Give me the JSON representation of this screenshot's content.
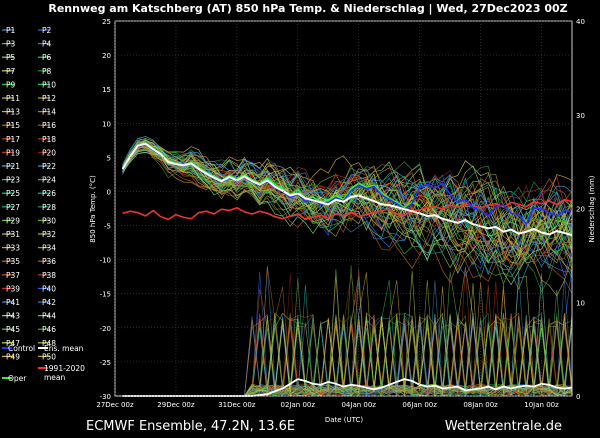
{
  "header": {
    "title": "Rennweg am Katschberg  (AT)  850 hPa Temp. & Niederschlag | Wed, 27Dec2023 00Z"
  },
  "footer": {
    "left": "ECMWF Ensemble, 47.2N, 13.6E",
    "right": "Wetterzentrale.de"
  },
  "legend": {
    "members": [
      {
        "label": "P1",
        "color": "#4a86e8"
      },
      {
        "label": "P2",
        "color": "#3366ff"
      },
      {
        "label": "P3",
        "color": "#6fbf3a"
      },
      {
        "label": "P4",
        "color": "#3a78d8"
      },
      {
        "label": "P5",
        "color": "#8ee07a"
      },
      {
        "label": "P6",
        "color": "#22cc55"
      },
      {
        "label": "P7",
        "color": "#c9d94a"
      },
      {
        "label": "P8",
        "color": "#1f9b2f"
      },
      {
        "label": "P9",
        "color": "#1bbf3f"
      },
      {
        "label": "P10",
        "color": "#26d15a"
      },
      {
        "label": "P11",
        "color": "#d9b23a"
      },
      {
        "label": "P12",
        "color": "#c8a030"
      },
      {
        "label": "P13",
        "color": "#e0a040"
      },
      {
        "label": "P14",
        "color": "#b07a30"
      },
      {
        "label": "P15",
        "color": "#c06a20"
      },
      {
        "label": "P16",
        "color": "#a85f25"
      },
      {
        "label": "P17",
        "color": "#cc4422"
      },
      {
        "label": "P18",
        "color": "#b03a22"
      },
      {
        "label": "P19",
        "color": "#bb3311"
      },
      {
        "label": "P20",
        "color": "#882211"
      },
      {
        "label": "P21",
        "color": "#4aa8e8"
      },
      {
        "label": "P22",
        "color": "#3a98d8"
      },
      {
        "label": "P23",
        "color": "#3ac0c8"
      },
      {
        "label": "P24",
        "color": "#30a8b0"
      },
      {
        "label": "P25",
        "color": "#2ab7a0"
      },
      {
        "label": "P26",
        "color": "#24a890"
      },
      {
        "label": "P27",
        "color": "#22b070"
      },
      {
        "label": "P28",
        "color": "#1f9a60"
      },
      {
        "label": "P29",
        "color": "#6fbf3a"
      },
      {
        "label": "P30",
        "color": "#5aaa30"
      },
      {
        "label": "P31",
        "color": "#c8c030"
      },
      {
        "label": "P32",
        "color": "#b8b02a"
      },
      {
        "label": "P33",
        "color": "#d9a030"
      },
      {
        "label": "P34",
        "color": "#c08a28"
      },
      {
        "label": "P35",
        "color": "#c06a30"
      },
      {
        "label": "P36",
        "color": "#b05a25"
      },
      {
        "label": "P37",
        "color": "#cc5522"
      },
      {
        "label": "P38",
        "color": "#aa4420"
      },
      {
        "label": "P39",
        "color": "#dd2222"
      },
      {
        "label": "P40",
        "color": "#3366cc"
      },
      {
        "label": "P41",
        "color": "#4a86e8"
      },
      {
        "label": "P42",
        "color": "#3a78d8"
      },
      {
        "label": "P43",
        "color": "#8ee07a"
      },
      {
        "label": "P44",
        "color": "#5ad05a"
      },
      {
        "label": "P45",
        "color": "#7ac050"
      },
      {
        "label": "P46",
        "color": "#30b040"
      },
      {
        "label": "P47",
        "color": "#c9d94a"
      },
      {
        "label": "P48",
        "color": "#a0c040"
      },
      {
        "label": "P49",
        "color": "#d9b23a"
      },
      {
        "label": "P50",
        "color": "#c8a030"
      }
    ],
    "control": {
      "label": "Control",
      "color": "#2233ff"
    },
    "mean": {
      "label": "Ens. mean",
      "color": "#ffffff"
    },
    "oper": {
      "label": "Oper",
      "color": "#33ee33"
    },
    "clim": {
      "label": "1991-2020 mean",
      "line1": "1991-2020",
      "line2": "mean",
      "color": "#ee3333"
    }
  },
  "chart_data": {
    "type": "line",
    "title": "Rennweg am Katschberg  (AT)  850 hPa Temp. & Niederschlag | Wed, 27Dec2023 00Z",
    "xlabel": "Date (UTC)",
    "ylabel": "850 hPa Temp. (°C)",
    "ylabel_right": "Niederschlag (mm)",
    "xlim": [
      0,
      360
    ],
    "ylim": [
      -30,
      25
    ],
    "ylim_right": [
      0,
      40
    ],
    "x_unit": "hours since 27Dec 00z",
    "x_ticks": [
      0,
      48,
      96,
      144,
      192,
      240,
      288,
      336
    ],
    "x_tick_labels": [
      "27Dec 00z",
      "29Dec 00z",
      "31Dec 00z",
      "02Jan 00z",
      "04Jan 00z",
      "06Jan 00z",
      "08Jan 00z",
      "10Jan 00z"
    ],
    "y_ticks": [
      -30,
      -25,
      -20,
      -15,
      -10,
      -5,
      0,
      5,
      10,
      15,
      20,
      25
    ],
    "y_ticks_right": [
      0,
      10,
      20,
      30,
      40
    ],
    "grid": true,
    "series": [
      {
        "name": "1991-2020 mean",
        "color": "#ee3333",
        "axis": "left",
        "x": [
          6,
          12,
          18,
          24,
          30,
          36,
          42,
          48,
          54,
          60,
          66,
          72,
          78,
          84,
          90,
          96,
          102,
          108,
          114,
          120,
          126,
          132,
          138,
          144,
          150,
          156,
          162,
          168,
          174,
          180,
          186,
          192,
          198,
          204,
          210,
          216,
          222,
          228,
          234,
          240,
          246,
          252,
          258,
          264,
          270,
          276,
          282,
          288,
          294,
          300,
          306,
          312,
          318,
          324,
          330,
          336,
          342,
          348,
          354,
          360
        ],
        "y": [
          -3.2,
          -2.9,
          -3.1,
          -3.6,
          -2.8,
          -3.7,
          -4.1,
          -3.4,
          -3.8,
          -4.0,
          -3.1,
          -2.9,
          -3.3,
          -2.6,
          -2.8,
          -2.4,
          -3.0,
          -3.3,
          -2.9,
          -3.2,
          -3.7,
          -4.0,
          -3.6,
          -3.3,
          -4.1,
          -3.8,
          -3.5,
          -3.9,
          -3.3,
          -3.6,
          -3.0,
          -3.7,
          -3.4,
          -3.1,
          -2.8,
          -2.6,
          -3.3,
          -3.5,
          -2.9,
          -2.7,
          -2.4,
          -2.2,
          -2.6,
          -2.0,
          -2.3,
          -1.9,
          -2.1,
          -2.4,
          -2.0,
          -1.8,
          -2.3,
          -1.6,
          -1.9,
          -2.2,
          -1.5,
          -1.8,
          -1.4,
          -1.9,
          -1.2,
          -1.5
        ]
      },
      {
        "name": "Oper",
        "color": "#33ee33",
        "axis": "left",
        "x": [
          6,
          12,
          18,
          24,
          30,
          36,
          42,
          48,
          54,
          60,
          66,
          72,
          78,
          84,
          90,
          96,
          102,
          108,
          114,
          120,
          126,
          132,
          138,
          144,
          150,
          156,
          162,
          168,
          174,
          180,
          186,
          192,
          198,
          204,
          210,
          216,
          222,
          228,
          234,
          240
        ],
        "y": [
          3.4,
          5.2,
          6.8,
          7.1,
          6.3,
          5.6,
          4.4,
          4.1,
          3.9,
          4.2,
          3.5,
          2.8,
          2.2,
          1.6,
          2.3,
          1.8,
          2.4,
          1.7,
          1.2,
          1.9,
          1.0,
          0.4,
          -0.5,
          0.2,
          -1.1,
          -0.8,
          -1.6,
          -1.3,
          -0.6,
          -1.2,
          0.4,
          1.2,
          0.6,
          0.9,
          -0.2,
          -1.0,
          -1.6,
          -2.4,
          -1.6,
          -2.1
        ]
      },
      {
        "name": "Control",
        "color": "#2233ff",
        "axis": "left",
        "x": [
          6,
          12,
          18,
          24,
          30,
          36,
          42,
          48,
          54,
          60,
          66,
          72,
          78,
          84,
          90,
          96,
          102,
          108,
          114,
          120,
          126,
          132,
          138,
          144,
          150,
          156,
          162,
          168,
          174,
          180,
          186,
          192,
          198,
          204,
          210,
          216,
          222,
          228,
          234,
          240,
          246,
          252,
          258,
          264,
          270,
          276,
          282,
          288,
          294,
          300,
          306,
          312,
          318,
          324,
          330,
          336,
          342,
          348,
          354,
          360
        ],
        "y": [
          3.2,
          5.0,
          6.6,
          6.9,
          6.1,
          5.4,
          4.3,
          4.0,
          3.7,
          4.0,
          3.2,
          2.5,
          1.9,
          1.4,
          2.0,
          1.5,
          2.1,
          1.4,
          0.9,
          1.5,
          0.6,
          0.0,
          -0.9,
          -0.4,
          -1.5,
          -1.2,
          -1.9,
          -1.6,
          -0.9,
          -1.4,
          0.1,
          0.9,
          0.4,
          0.7,
          -0.5,
          -1.2,
          -1.8,
          -2.6,
          -1.8,
          0.6,
          1.0,
          0.5,
          1.2,
          -0.4,
          -1.6,
          -1.2,
          -2.4,
          -2.8,
          -3.6,
          -2.2,
          -2.0,
          -3.2,
          -3.4,
          -4.8,
          -2.4,
          -2.6,
          -3.1,
          -3.6,
          -2.8,
          -3.0
        ]
      },
      {
        "name": "Ens. mean",
        "color": "#ffffff",
        "axis": "left",
        "x": [
          6,
          12,
          18,
          24,
          30,
          36,
          42,
          48,
          54,
          60,
          66,
          72,
          78,
          84,
          90,
          96,
          102,
          108,
          114,
          120,
          126,
          132,
          138,
          144,
          150,
          156,
          162,
          168,
          174,
          180,
          186,
          192,
          198,
          204,
          210,
          216,
          222,
          228,
          234,
          240,
          246,
          252,
          258,
          264,
          270,
          276,
          282,
          288,
          294,
          300,
          306,
          312,
          318,
          324,
          330,
          336,
          342,
          348,
          354,
          360
        ],
        "y": [
          3.3,
          5.1,
          6.7,
          7.0,
          6.2,
          5.5,
          4.3,
          4.0,
          3.8,
          4.1,
          3.3,
          2.6,
          2.0,
          1.5,
          2.1,
          1.6,
          2.2,
          1.5,
          1.0,
          1.6,
          0.7,
          0.1,
          -0.6,
          -0.3,
          -1.0,
          -1.3,
          -1.6,
          -1.9,
          -1.2,
          -1.5,
          -0.8,
          -0.6,
          -1.0,
          -1.4,
          -1.9,
          -2.0,
          -2.3,
          -2.6,
          -2.9,
          -3.2,
          -3.6,
          -3.5,
          -4.0,
          -4.3,
          -4.6,
          -4.2,
          -4.8,
          -5.1,
          -5.4,
          -5.2,
          -5.9,
          -5.6,
          -6.2,
          -5.9,
          -5.5,
          -6.0,
          -6.3,
          -5.8,
          -6.1,
          -6.4
        ]
      },
      {
        "name": "Ens. mean precip",
        "color": "#ffffff",
        "axis": "right",
        "x": [
          6,
          24,
          48,
          72,
          96,
          108,
          120,
          132,
          144,
          150,
          156,
          162,
          168,
          174,
          180,
          186,
          192,
          198,
          204,
          210,
          216,
          222,
          228,
          234,
          240,
          246,
          252,
          258,
          264,
          270,
          276,
          282,
          288,
          294,
          300,
          306,
          312,
          318,
          324,
          330,
          336,
          342,
          348,
          354,
          360
        ],
        "y": [
          0,
          0,
          0,
          0,
          0,
          0,
          0.2,
          0.8,
          1.8,
          1.6,
          1.3,
          1.2,
          1.5,
          1.3,
          1.0,
          1.2,
          1.1,
          0.9,
          0.7,
          0.9,
          1.2,
          1.5,
          1.8,
          1.6,
          1.2,
          1.0,
          1.1,
          0.8,
          0.9,
          1.0,
          0.6,
          0.7,
          0.8,
          1.0,
          0.7,
          1.0,
          0.8,
          1.0,
          1.1,
          1.0,
          1.3,
          1.2,
          0.9,
          0.8,
          0.9
        ]
      }
    ]
  }
}
